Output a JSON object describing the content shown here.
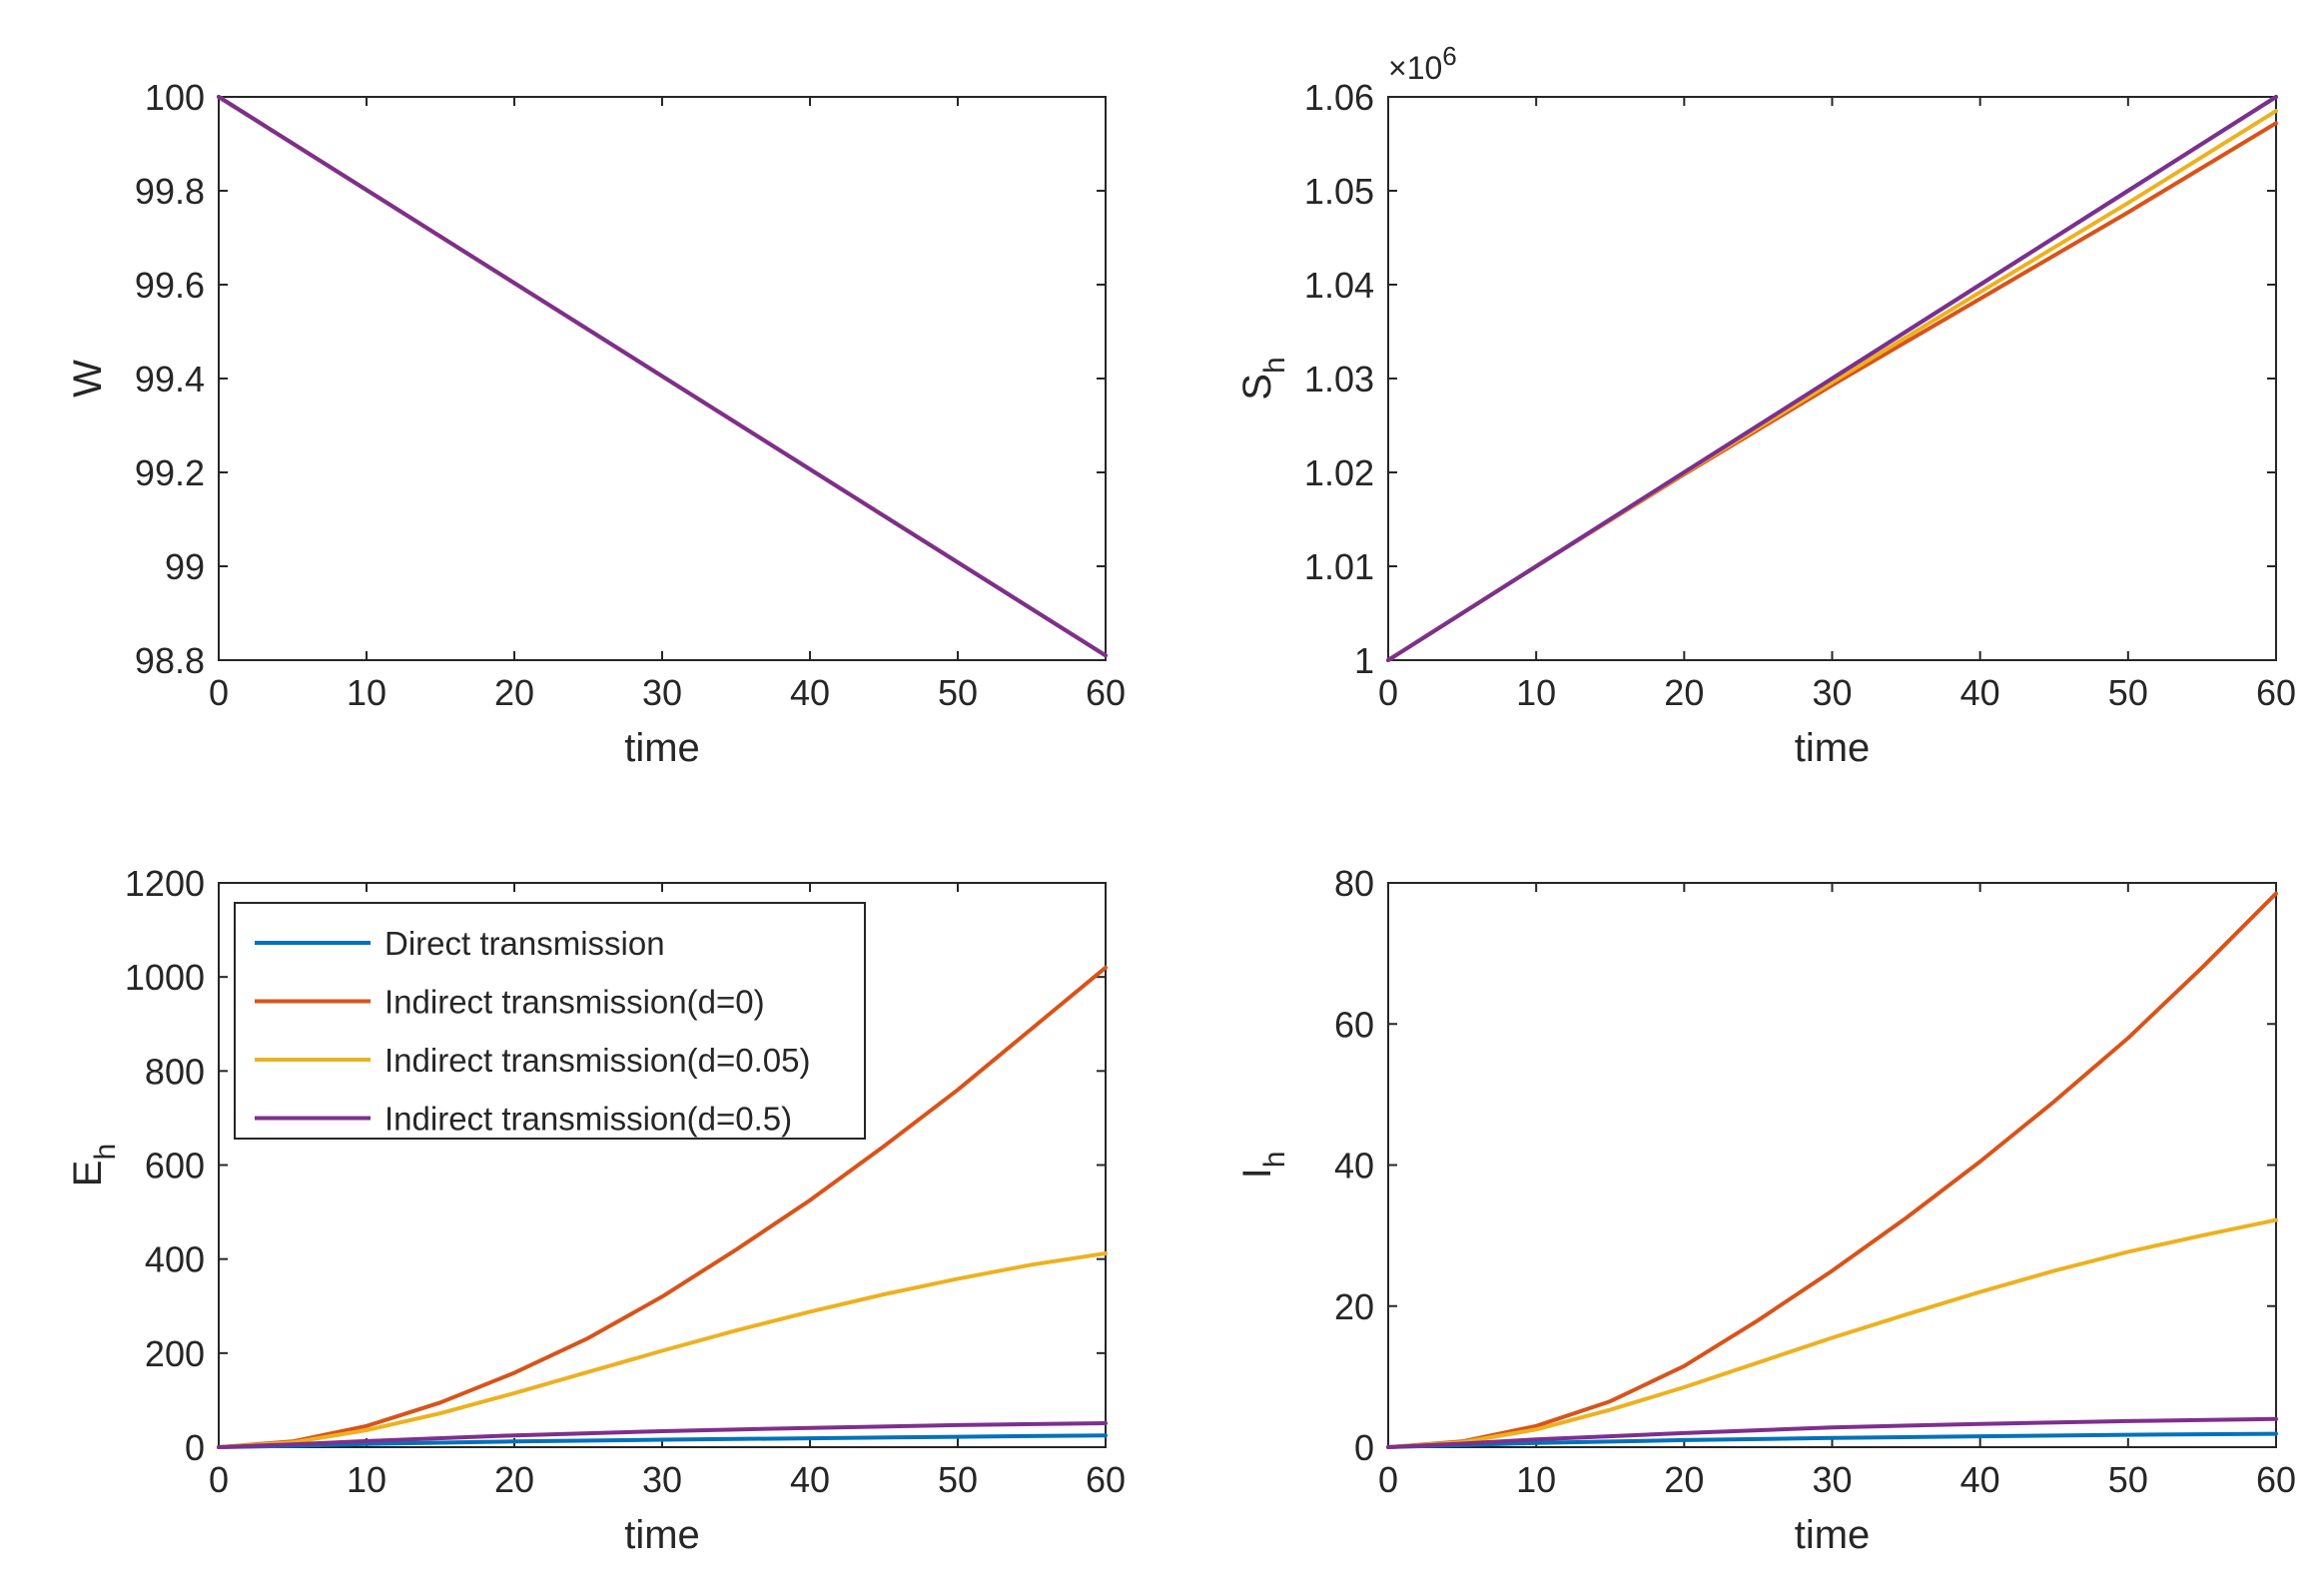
{
  "chart_data": [
    {
      "id": "W",
      "type": "line",
      "title": "",
      "xlabel": "time",
      "ylabel": "W",
      "ylabel_sub": "",
      "exponent": "",
      "xlim": [
        0,
        60
      ],
      "ylim": [
        98.8,
        100
      ],
      "xticks": [
        0,
        10,
        20,
        30,
        40,
        50,
        60
      ],
      "yticks": [
        98.8,
        99,
        99.2,
        99.4,
        99.6,
        99.8,
        100
      ],
      "ytick_labels": [
        "98.8",
        "99",
        "99.2",
        "99.4",
        "99.6",
        "99.8",
        "100"
      ],
      "grid": false,
      "series": [
        {
          "name": "Direct transmission",
          "color": "#0072BD",
          "x": [
            0,
            60
          ],
          "y": [
            100,
            98.81
          ]
        },
        {
          "name": "Indirect transmission(d=0)",
          "color": "#D95319",
          "x": [
            0,
            60
          ],
          "y": [
            100,
            98.81
          ]
        },
        {
          "name": "Indirect transmission(d=0.05)",
          "color": "#EDB120",
          "x": [
            0,
            60
          ],
          "y": [
            100,
            98.81
          ]
        },
        {
          "name": "Indirect transmission(d=0.5)",
          "color": "#7E2F8E",
          "x": [
            0,
            60
          ],
          "y": [
            100,
            98.81
          ]
        }
      ]
    },
    {
      "id": "Sh",
      "type": "line",
      "title": "",
      "xlabel": "time",
      "ylabel": "S",
      "ylabel_sub": "h",
      "exponent": "×10",
      "exponent_power": "6",
      "xlim": [
        0,
        60
      ],
      "ylim": [
        1,
        1.06
      ],
      "xticks": [
        0,
        10,
        20,
        30,
        40,
        50,
        60
      ],
      "yticks": [
        1,
        1.01,
        1.02,
        1.03,
        1.04,
        1.05,
        1.06
      ],
      "ytick_labels": [
        "1",
        "1.01",
        "1.02",
        "1.03",
        "1.04",
        "1.05",
        "1.06"
      ],
      "grid": false,
      "series": [
        {
          "name": "Direct transmission",
          "color": "#0072BD",
          "x": [
            0,
            10,
            20,
            30,
            40,
            50,
            60
          ],
          "y": [
            1,
            1.01,
            1.02,
            1.03,
            1.04,
            1.05,
            1.06
          ]
        },
        {
          "name": "Indirect transmission(d=0)",
          "color": "#D95319",
          "x": [
            0,
            10,
            20,
            30,
            40,
            50,
            60
          ],
          "y": [
            1,
            1.01,
            1.0198,
            1.0293,
            1.0385,
            1.0477,
            1.0572
          ]
        },
        {
          "name": "Indirect transmission(d=0.05)",
          "color": "#EDB120",
          "x": [
            0,
            10,
            20,
            30,
            40,
            50,
            60
          ],
          "y": [
            1,
            1.01,
            1.0199,
            1.0296,
            1.0392,
            1.0487,
            1.0585
          ]
        },
        {
          "name": "Indirect transmission(d=0.5)",
          "color": "#7E2F8E",
          "x": [
            0,
            10,
            20,
            30,
            40,
            50,
            60
          ],
          "y": [
            1,
            1.01,
            1.02,
            1.03,
            1.04,
            1.05,
            1.06
          ]
        }
      ]
    },
    {
      "id": "Eh",
      "type": "line",
      "title": "",
      "xlabel": "time",
      "ylabel": "E",
      "ylabel_sub": "h",
      "exponent": "",
      "xlim": [
        0,
        60
      ],
      "ylim": [
        0,
        1200
      ],
      "xticks": [
        0,
        10,
        20,
        30,
        40,
        50,
        60
      ],
      "yticks": [
        0,
        200,
        400,
        600,
        800,
        1000,
        1200
      ],
      "ytick_labels": [
        "0",
        "200",
        "400",
        "600",
        "800",
        "1000",
        "1200"
      ],
      "grid": false,
      "legend": {
        "location": "top-left",
        "entries": [
          "Direct transmission",
          "Indirect transmission(d=0)",
          "Indirect transmission(d=0.05)",
          "Indirect transmission(d=0.5)"
        ]
      },
      "series": [
        {
          "name": "Direct transmission",
          "color": "#0072BD",
          "x": [
            0,
            5,
            10,
            20,
            30,
            40,
            50,
            60
          ],
          "y": [
            0,
            3,
            7,
            12,
            16,
            19,
            22,
            25
          ]
        },
        {
          "name": "Indirect transmission(d=0)",
          "color": "#D95319",
          "x": [
            0,
            5,
            10,
            15,
            20,
            25,
            30,
            35,
            40,
            45,
            50,
            55,
            60
          ],
          "y": [
            0,
            12,
            45,
            95,
            158,
            232,
            320,
            420,
            525,
            640,
            760,
            890,
            1020
          ]
        },
        {
          "name": "Indirect transmission(d=0.05)",
          "color": "#EDB120",
          "x": [
            0,
            5,
            10,
            15,
            20,
            25,
            30,
            35,
            40,
            45,
            50,
            55,
            60
          ],
          "y": [
            0,
            10,
            36,
            72,
            115,
            160,
            205,
            248,
            288,
            325,
            358,
            388,
            412
          ]
        },
        {
          "name": "Indirect transmission(d=0.5)",
          "color": "#7E2F8E",
          "x": [
            0,
            5,
            10,
            20,
            30,
            40,
            50,
            60
          ],
          "y": [
            0,
            6,
            13,
            25,
            34,
            41,
            47,
            51
          ]
        }
      ]
    },
    {
      "id": "Ih",
      "type": "line",
      "title": "",
      "xlabel": "time",
      "ylabel": "I",
      "ylabel_sub": "h",
      "exponent": "",
      "xlim": [
        0,
        60
      ],
      "ylim": [
        0,
        80
      ],
      "xticks": [
        0,
        10,
        20,
        30,
        40,
        50,
        60
      ],
      "yticks": [
        0,
        20,
        40,
        60,
        80
      ],
      "ytick_labels": [
        "0",
        "20",
        "40",
        "60",
        "80"
      ],
      "grid": false,
      "series": [
        {
          "name": "Direct transmission",
          "color": "#0072BD",
          "x": [
            0,
            5,
            10,
            20,
            30,
            40,
            50,
            60
          ],
          "y": [
            0,
            0.3,
            0.6,
            1.0,
            1.3,
            1.55,
            1.75,
            1.9
          ]
        },
        {
          "name": "Indirect transmission(d=0)",
          "color": "#D95319",
          "x": [
            0,
            5,
            10,
            15,
            20,
            25,
            30,
            35,
            40,
            45,
            50,
            55,
            60
          ],
          "y": [
            0,
            0.8,
            3.0,
            6.5,
            11.5,
            18,
            25,
            32.5,
            40.5,
            49,
            58,
            68,
            78.5
          ]
        },
        {
          "name": "Indirect transmission(d=0.05)",
          "color": "#EDB120",
          "x": [
            0,
            5,
            10,
            15,
            20,
            25,
            30,
            35,
            40,
            45,
            50,
            55,
            60
          ],
          "y": [
            0,
            0.7,
            2.5,
            5.3,
            8.5,
            12,
            15.5,
            18.8,
            22,
            25,
            27.7,
            30,
            32.2
          ]
        },
        {
          "name": "Indirect transmission(d=0.5)",
          "color": "#7E2F8E",
          "x": [
            0,
            5,
            10,
            20,
            30,
            40,
            50,
            60
          ],
          "y": [
            0,
            0.5,
            1.1,
            2.0,
            2.8,
            3.3,
            3.7,
            4.0
          ]
        }
      ]
    }
  ]
}
